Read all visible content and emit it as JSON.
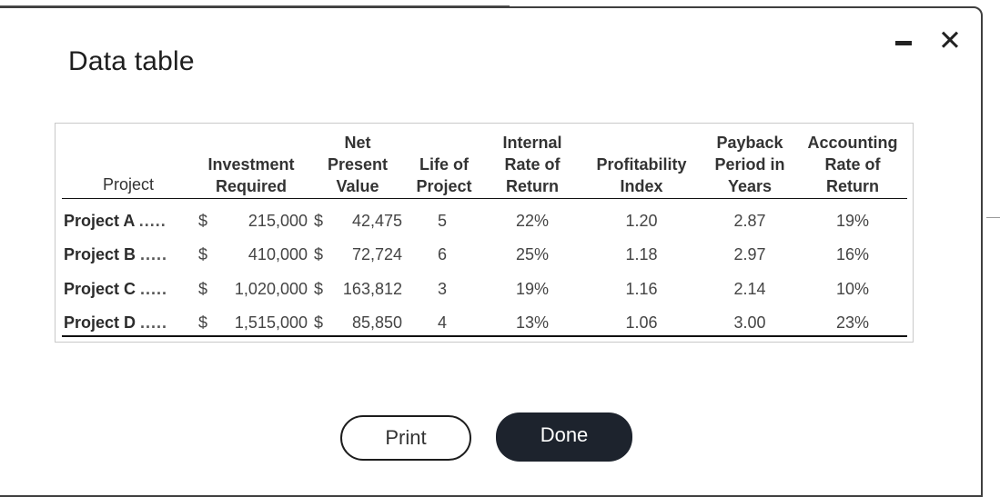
{
  "dialog": {
    "title": "Data table",
    "minimize_icon": "minimize-icon",
    "close_icon": "close-icon",
    "close_glyph": "✕"
  },
  "table": {
    "headers": {
      "project": "Project",
      "investment": [
        "Investment",
        "Required"
      ],
      "npv": [
        "Net",
        "Present",
        "Value"
      ],
      "life": [
        "Life of",
        "Project"
      ],
      "irr": [
        "Internal",
        "Rate of",
        "Return"
      ],
      "pi": [
        "Profitability",
        "Index"
      ],
      "payback": [
        "Payback",
        "Period in",
        "Years"
      ],
      "arr": [
        "Accounting",
        "Rate of",
        "Return"
      ]
    },
    "rows": [
      {
        "name": "Project A",
        "dots": ".....",
        "inv_sym": "$",
        "investment": "215,000",
        "npv_sym": "$",
        "npv": "42,475",
        "life": "5",
        "irr": "22%",
        "pi": "1.20",
        "payback": "2.87",
        "arr": "19%"
      },
      {
        "name": "Project B",
        "dots": ".....",
        "inv_sym": "$",
        "investment": "410,000",
        "npv_sym": "$",
        "npv": "72,724",
        "life": "6",
        "irr": "25%",
        "pi": "1.18",
        "payback": "2.97",
        "arr": "16%"
      },
      {
        "name": "Project C",
        "dots": ".....",
        "inv_sym": "$",
        "investment": "1,020,000",
        "npv_sym": "$",
        "npv": "163,812",
        "life": "3",
        "irr": "19%",
        "pi": "1.16",
        "payback": "2.14",
        "arr": "10%"
      },
      {
        "name": "Project D",
        "dots": ".....",
        "inv_sym": "$",
        "investment": "1,515,000",
        "npv_sym": "$",
        "npv": "85,850",
        "life": "4",
        "irr": "13%",
        "pi": "1.06",
        "payback": "3.00",
        "arr": "23%"
      }
    ]
  },
  "buttons": {
    "print": "Print",
    "done": "Done"
  }
}
